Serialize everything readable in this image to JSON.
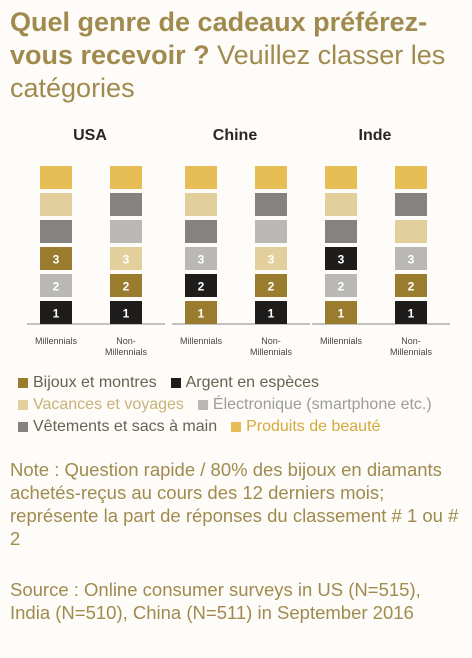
{
  "title": {
    "bold": "Quel genre de cadeaux préférez-vous recevoir ?",
    "light": "Veuillez classer les catégories"
  },
  "colors": {
    "bijoux": "#9a7c2e",
    "argent": "#1f1d1b",
    "vacances": "#e2cf9c",
    "electronique": "#b9b8b5",
    "vetements": "#858380",
    "beaute": "#e7bd55"
  },
  "chart_data": {
    "type": "bar",
    "stacked": true,
    "panels": [
      "USA",
      "Chine",
      "Inde"
    ],
    "categories": [
      "Millennials",
      "Non-Millennials"
    ],
    "legend": [
      {
        "key": "bijoux",
        "label": "Bijoux et montres"
      },
      {
        "key": "argent",
        "label": "Argent en espèces"
      },
      {
        "key": "vacances",
        "label": "Vacances et voyages"
      },
      {
        "key": "electronique",
        "label": "Électronique (smartphone etc.)"
      },
      {
        "key": "vetements",
        "label": "Vêtements et sacs à main"
      },
      {
        "key": "beaute",
        "label": "Produits de beauté"
      }
    ],
    "bars": [
      {
        "panel": "USA",
        "category": "Millennials",
        "segments": [
          {
            "key": "argent",
            "rank": "1"
          },
          {
            "key": "electronique",
            "rank": "2"
          },
          {
            "key": "bijoux",
            "rank": "3"
          },
          {
            "key": "vetements",
            "rank": ""
          },
          {
            "key": "vacances",
            "rank": ""
          },
          {
            "key": "beaute",
            "rank": ""
          }
        ]
      },
      {
        "panel": "USA",
        "category": "Non-Millennials",
        "segments": [
          {
            "key": "argent",
            "rank": "1"
          },
          {
            "key": "bijoux",
            "rank": "2"
          },
          {
            "key": "vacances",
            "rank": "3"
          },
          {
            "key": "electronique",
            "rank": ""
          },
          {
            "key": "vetements",
            "rank": ""
          },
          {
            "key": "beaute",
            "rank": ""
          }
        ]
      },
      {
        "panel": "Chine",
        "category": "Millennials",
        "segments": [
          {
            "key": "bijoux",
            "rank": "1"
          },
          {
            "key": "argent",
            "rank": "2"
          },
          {
            "key": "electronique",
            "rank": "3"
          },
          {
            "key": "vetements",
            "rank": ""
          },
          {
            "key": "vacances",
            "rank": ""
          },
          {
            "key": "beaute",
            "rank": ""
          }
        ]
      },
      {
        "panel": "Chine",
        "category": "Non-Millennials",
        "segments": [
          {
            "key": "argent",
            "rank": "1"
          },
          {
            "key": "bijoux",
            "rank": "2"
          },
          {
            "key": "vacances",
            "rank": "3"
          },
          {
            "key": "electronique",
            "rank": ""
          },
          {
            "key": "vetements",
            "rank": ""
          },
          {
            "key": "beaute",
            "rank": ""
          }
        ]
      },
      {
        "panel": "Inde",
        "category": "Millennials",
        "segments": [
          {
            "key": "bijoux",
            "rank": "1"
          },
          {
            "key": "electronique",
            "rank": "2"
          },
          {
            "key": "argent",
            "rank": "3"
          },
          {
            "key": "vetements",
            "rank": ""
          },
          {
            "key": "vacances",
            "rank": ""
          },
          {
            "key": "beaute",
            "rank": ""
          }
        ]
      },
      {
        "panel": "Inde",
        "category": "Non-Millennials",
        "segments": [
          {
            "key": "argent",
            "rank": "1"
          },
          {
            "key": "bijoux",
            "rank": "2"
          },
          {
            "key": "electronique",
            "rank": "3"
          },
          {
            "key": "vacances",
            "rank": ""
          },
          {
            "key": "vetements",
            "rank": ""
          },
          {
            "key": "beaute",
            "rank": ""
          }
        ]
      }
    ]
  },
  "note": "Note : Question rapide / 80% des bijoux en diamants achetés-reçus au cours des 12 derniers mois; représente la part de réponses du classement # 1 ou # 2",
  "source": "Source : Online consumer surveys in US (N=515), India (N=510), China (N=511) in September 2016"
}
